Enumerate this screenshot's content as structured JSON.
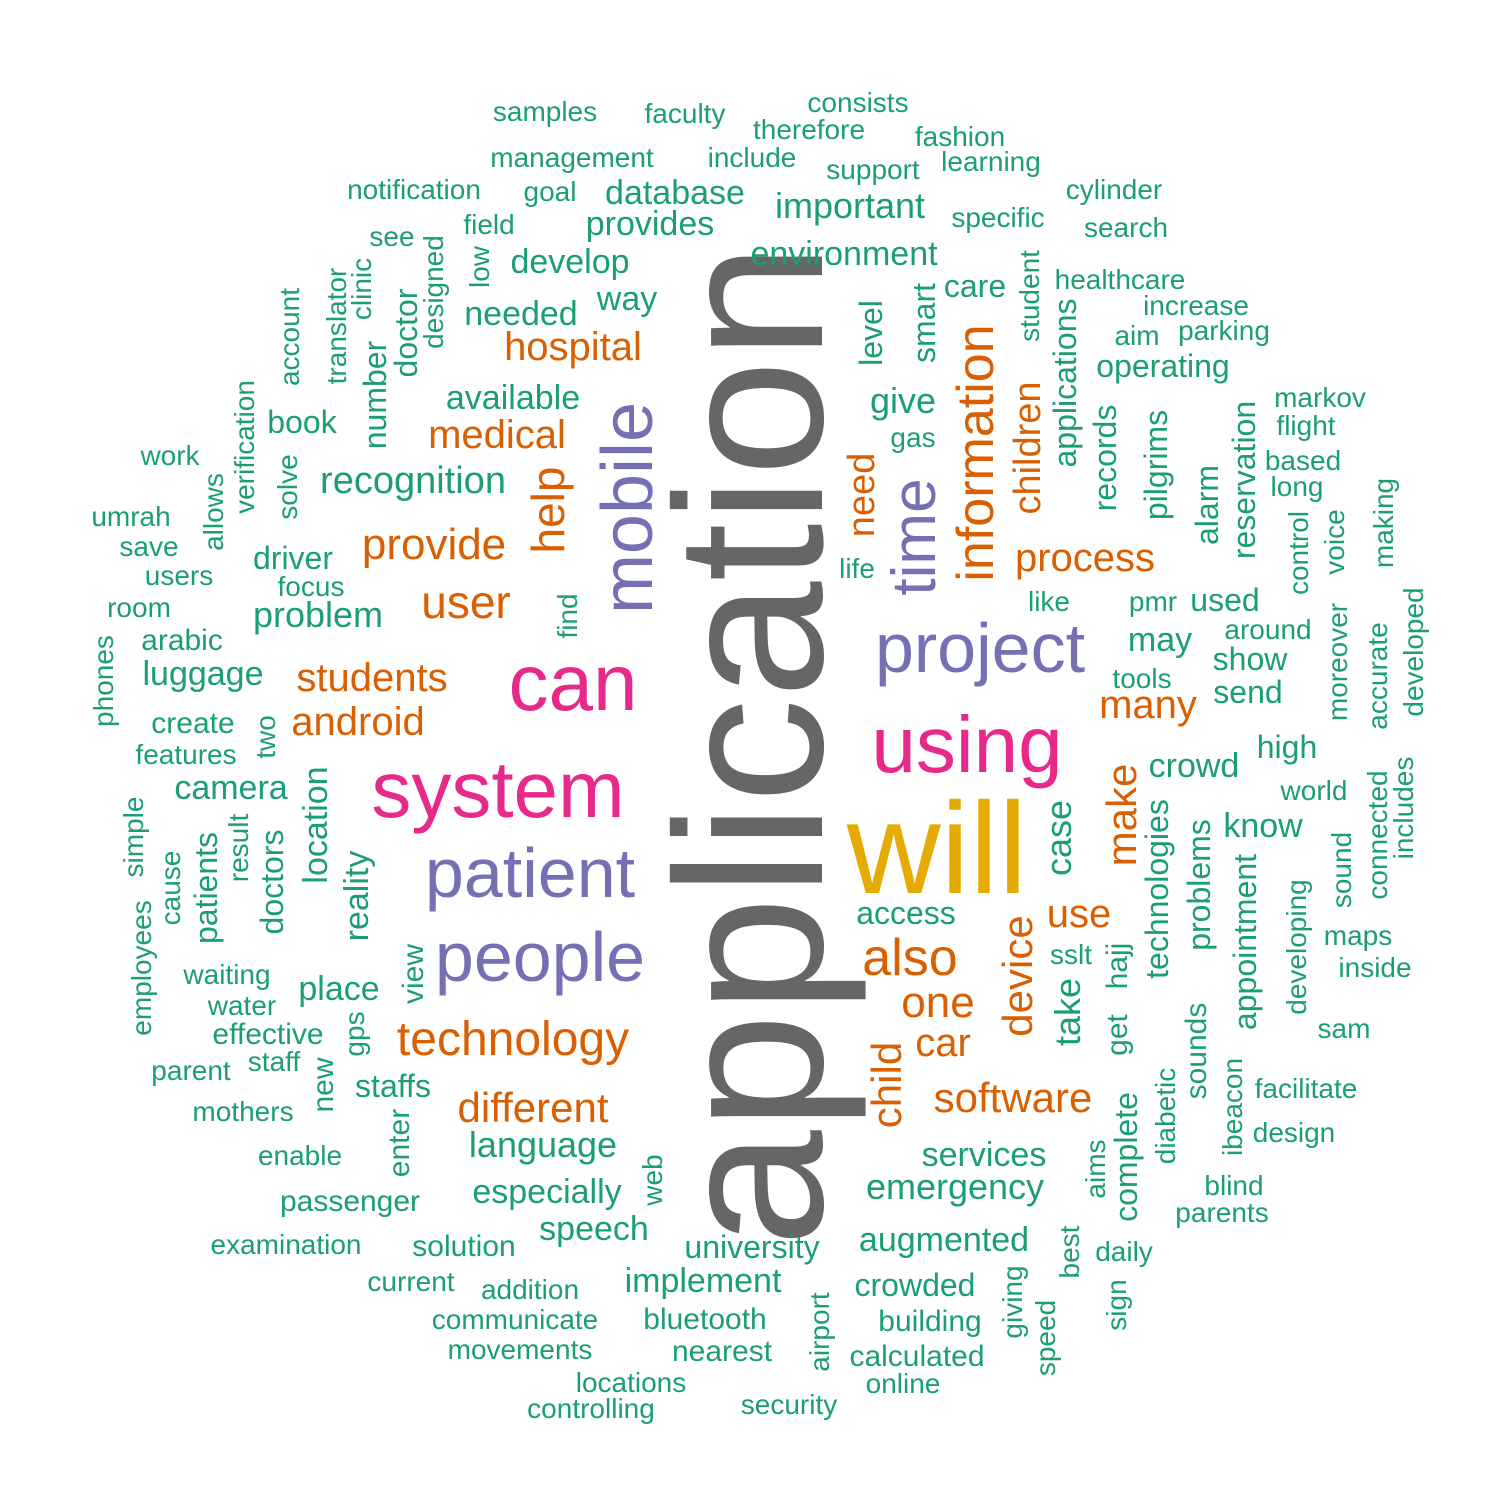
{
  "palette": {
    "gray": "#666666",
    "gold": "#E6AB02",
    "magenta": "#E7298A",
    "purple": "#7570B3",
    "orange": "#D95F02",
    "teal": "#1B9E77"
  },
  "words": [
    {
      "text": "application",
      "color": "gray",
      "rank": 1
    },
    {
      "text": "will",
      "color": "gold",
      "rank": 2
    },
    {
      "text": "system",
      "color": "magenta",
      "rank": 3
    },
    {
      "text": "can",
      "color": "magenta",
      "rank": 3
    },
    {
      "text": "using",
      "color": "magenta",
      "rank": 3
    },
    {
      "text": "patient",
      "color": "purple",
      "rank": 4
    },
    {
      "text": "project",
      "color": "purple",
      "rank": 4
    },
    {
      "text": "people",
      "color": "purple",
      "rank": 4
    },
    {
      "text": "mobile",
      "color": "purple",
      "rank": 4
    },
    {
      "text": "time",
      "color": "purple",
      "rank": 4
    },
    {
      "text": "also",
      "color": "orange",
      "rank": 5
    },
    {
      "text": "information",
      "color": "orange",
      "rank": 5
    },
    {
      "text": "technology",
      "color": "orange",
      "rank": 5
    },
    {
      "text": "help",
      "color": "orange",
      "rank": 5
    },
    {
      "text": "user",
      "color": "orange",
      "rank": 5
    },
    {
      "text": "provide",
      "color": "orange",
      "rank": 5
    },
    {
      "text": "students",
      "color": "orange",
      "rank": 5
    },
    {
      "text": "android",
      "color": "orange",
      "rank": 5
    },
    {
      "text": "different",
      "color": "orange",
      "rank": 5
    },
    {
      "text": "hospital",
      "color": "orange",
      "rank": 5
    },
    {
      "text": "medical",
      "color": "orange",
      "rank": 5
    },
    {
      "text": "process",
      "color": "orange",
      "rank": 5
    },
    {
      "text": "one",
      "color": "orange",
      "rank": 5
    },
    {
      "text": "software",
      "color": "orange",
      "rank": 5
    },
    {
      "text": "make",
      "color": "orange",
      "rank": 5
    },
    {
      "text": "device",
      "color": "orange",
      "rank": 5
    },
    {
      "text": "child",
      "color": "orange",
      "rank": 5
    },
    {
      "text": "use",
      "color": "orange",
      "rank": 5
    },
    {
      "text": "need",
      "color": "orange",
      "rank": 5
    },
    {
      "text": "children",
      "color": "orange",
      "rank": 5
    },
    {
      "text": "many",
      "color": "orange",
      "rank": 5
    },
    {
      "text": "car",
      "color": "orange",
      "rank": 5
    },
    {
      "text": "samples",
      "color": "teal",
      "rank": 6
    },
    {
      "text": "faculty",
      "color": "teal",
      "rank": 6
    },
    {
      "text": "consists",
      "color": "teal",
      "rank": 6
    },
    {
      "text": "therefore",
      "color": "teal",
      "rank": 6
    },
    {
      "text": "fashion",
      "color": "teal",
      "rank": 6
    },
    {
      "text": "management",
      "color": "teal",
      "rank": 6
    },
    {
      "text": "include",
      "color": "teal",
      "rank": 6
    },
    {
      "text": "learning",
      "color": "teal",
      "rank": 6
    },
    {
      "text": "support",
      "color": "teal",
      "rank": 6
    },
    {
      "text": "notification",
      "color": "teal",
      "rank": 6
    },
    {
      "text": "goal",
      "color": "teal",
      "rank": 6
    },
    {
      "text": "database",
      "color": "teal",
      "rank": 6
    },
    {
      "text": "cylinder",
      "color": "teal",
      "rank": 6
    },
    {
      "text": "important",
      "color": "teal",
      "rank": 6
    },
    {
      "text": "specific",
      "color": "teal",
      "rank": 6
    },
    {
      "text": "field",
      "color": "teal",
      "rank": 6
    },
    {
      "text": "provides",
      "color": "teal",
      "rank": 6
    },
    {
      "text": "search",
      "color": "teal",
      "rank": 6
    },
    {
      "text": "see",
      "color": "teal",
      "rank": 6
    },
    {
      "text": "environment",
      "color": "teal",
      "rank": 6
    },
    {
      "text": "develop",
      "color": "teal",
      "rank": 6
    },
    {
      "text": "healthcare",
      "color": "teal",
      "rank": 6
    },
    {
      "text": "care",
      "color": "teal",
      "rank": 6
    },
    {
      "text": "increase",
      "color": "teal",
      "rank": 6
    },
    {
      "text": "way",
      "color": "teal",
      "rank": 6
    },
    {
      "text": "parking",
      "color": "teal",
      "rank": 6
    },
    {
      "text": "needed",
      "color": "teal",
      "rank": 6
    },
    {
      "text": "aim",
      "color": "teal",
      "rank": 6
    },
    {
      "text": "operating",
      "color": "teal",
      "rank": 6
    },
    {
      "text": "available",
      "color": "teal",
      "rank": 6
    },
    {
      "text": "give",
      "color": "teal",
      "rank": 6
    },
    {
      "text": "markov",
      "color": "teal",
      "rank": 6
    },
    {
      "text": "book",
      "color": "teal",
      "rank": 6
    },
    {
      "text": "flight",
      "color": "teal",
      "rank": 6
    },
    {
      "text": "gas",
      "color": "teal",
      "rank": 6
    },
    {
      "text": "work",
      "color": "teal",
      "rank": 6
    },
    {
      "text": "based",
      "color": "teal",
      "rank": 6
    },
    {
      "text": "recognition",
      "color": "teal",
      "rank": 6
    },
    {
      "text": "long",
      "color": "teal",
      "rank": 6
    },
    {
      "text": "umrah",
      "color": "teal",
      "rank": 6
    },
    {
      "text": "save",
      "color": "teal",
      "rank": 6
    },
    {
      "text": "driver",
      "color": "teal",
      "rank": 6
    },
    {
      "text": "life",
      "color": "teal",
      "rank": 6
    },
    {
      "text": "users",
      "color": "teal",
      "rank": 6
    },
    {
      "text": "focus",
      "color": "teal",
      "rank": 6
    },
    {
      "text": "room",
      "color": "teal",
      "rank": 6
    },
    {
      "text": "problem",
      "color": "teal",
      "rank": 6
    },
    {
      "text": "like",
      "color": "teal",
      "rank": 6
    },
    {
      "text": "pmr",
      "color": "teal",
      "rank": 6
    },
    {
      "text": "used",
      "color": "teal",
      "rank": 6
    },
    {
      "text": "around",
      "color": "teal",
      "rank": 6
    },
    {
      "text": "arabic",
      "color": "teal",
      "rank": 6
    },
    {
      "text": "may",
      "color": "teal",
      "rank": 6
    },
    {
      "text": "show",
      "color": "teal",
      "rank": 6
    },
    {
      "text": "luggage",
      "color": "teal",
      "rank": 6
    },
    {
      "text": "tools",
      "color": "teal",
      "rank": 6
    },
    {
      "text": "send",
      "color": "teal",
      "rank": 6
    },
    {
      "text": "create",
      "color": "teal",
      "rank": 6
    },
    {
      "text": "features",
      "color": "teal",
      "rank": 6
    },
    {
      "text": "high",
      "color": "teal",
      "rank": 6
    },
    {
      "text": "crowd",
      "color": "teal",
      "rank": 6
    },
    {
      "text": "camera",
      "color": "teal",
      "rank": 6
    },
    {
      "text": "world",
      "color": "teal",
      "rank": 6
    },
    {
      "text": "know",
      "color": "teal",
      "rank": 6
    },
    {
      "text": "access",
      "color": "teal",
      "rank": 6
    },
    {
      "text": "maps",
      "color": "teal",
      "rank": 6
    },
    {
      "text": "sslt",
      "color": "teal",
      "rank": 6
    },
    {
      "text": "waiting",
      "color": "teal",
      "rank": 6
    },
    {
      "text": "inside",
      "color": "teal",
      "rank": 6
    },
    {
      "text": "place",
      "color": "teal",
      "rank": 6
    },
    {
      "text": "water",
      "color": "teal",
      "rank": 6
    },
    {
      "text": "effective",
      "color": "teal",
      "rank": 6
    },
    {
      "text": "sam",
      "color": "teal",
      "rank": 6
    },
    {
      "text": "staff",
      "color": "teal",
      "rank": 6
    },
    {
      "text": "parent",
      "color": "teal",
      "rank": 6
    },
    {
      "text": "staffs",
      "color": "teal",
      "rank": 6
    },
    {
      "text": "facilitate",
      "color": "teal",
      "rank": 6
    },
    {
      "text": "mothers",
      "color": "teal",
      "rank": 6
    },
    {
      "text": "language",
      "color": "teal",
      "rank": 6
    },
    {
      "text": "design",
      "color": "teal",
      "rank": 6
    },
    {
      "text": "services",
      "color": "teal",
      "rank": 6
    },
    {
      "text": "enable",
      "color": "teal",
      "rank": 6
    },
    {
      "text": "emergency",
      "color": "teal",
      "rank": 6
    },
    {
      "text": "blind",
      "color": "teal",
      "rank": 6
    },
    {
      "text": "especially",
      "color": "teal",
      "rank": 6
    },
    {
      "text": "passenger",
      "color": "teal",
      "rank": 6
    },
    {
      "text": "parents",
      "color": "teal",
      "rank": 6
    },
    {
      "text": "speech",
      "color": "teal",
      "rank": 6
    },
    {
      "text": "augmented",
      "color": "teal",
      "rank": 6
    },
    {
      "text": "examination",
      "color": "teal",
      "rank": 6
    },
    {
      "text": "solution",
      "color": "teal",
      "rank": 6
    },
    {
      "text": "university",
      "color": "teal",
      "rank": 6
    },
    {
      "text": "daily",
      "color": "teal",
      "rank": 6
    },
    {
      "text": "current",
      "color": "teal",
      "rank": 6
    },
    {
      "text": "implement",
      "color": "teal",
      "rank": 6
    },
    {
      "text": "crowded",
      "color": "teal",
      "rank": 6
    },
    {
      "text": "addition",
      "color": "teal",
      "rank": 6
    },
    {
      "text": "communicate",
      "color": "teal",
      "rank": 6
    },
    {
      "text": "bluetooth",
      "color": "teal",
      "rank": 6
    },
    {
      "text": "building",
      "color": "teal",
      "rank": 6
    },
    {
      "text": "movements",
      "color": "teal",
      "rank": 6
    },
    {
      "text": "nearest",
      "color": "teal",
      "rank": 6
    },
    {
      "text": "calculated",
      "color": "teal",
      "rank": 6
    },
    {
      "text": "locations",
      "color": "teal",
      "rank": 6
    },
    {
      "text": "online",
      "color": "teal",
      "rank": 6
    },
    {
      "text": "controlling",
      "color": "teal",
      "rank": 6
    },
    {
      "text": "security",
      "color": "teal",
      "rank": 6
    },
    {
      "text": "designed",
      "color": "teal",
      "rank": 6
    },
    {
      "text": "low",
      "color": "teal",
      "rank": 6
    },
    {
      "text": "clinic",
      "color": "teal",
      "rank": 6
    },
    {
      "text": "doctor",
      "color": "teal",
      "rank": 6
    },
    {
      "text": "translator",
      "color": "teal",
      "rank": 6
    },
    {
      "text": "account",
      "color": "teal",
      "rank": 6
    },
    {
      "text": "number",
      "color": "teal",
      "rank": 6
    },
    {
      "text": "verification",
      "color": "teal",
      "rank": 6
    },
    {
      "text": "solve",
      "color": "teal",
      "rank": 6
    },
    {
      "text": "allows",
      "color": "teal",
      "rank": 6
    },
    {
      "text": "find",
      "color": "teal",
      "rank": 6
    },
    {
      "text": "phones",
      "color": "teal",
      "rank": 6
    },
    {
      "text": "two",
      "color": "teal",
      "rank": 6
    },
    {
      "text": "simple",
      "color": "teal",
      "rank": 6
    },
    {
      "text": "employees",
      "color": "teal",
      "rank": 6
    },
    {
      "text": "cause",
      "color": "teal",
      "rank": 6
    },
    {
      "text": "patients",
      "color": "teal",
      "rank": 6
    },
    {
      "text": "result",
      "color": "teal",
      "rank": 6
    },
    {
      "text": "doctors",
      "color": "teal",
      "rank": 6
    },
    {
      "text": "location",
      "color": "teal",
      "rank": 6
    },
    {
      "text": "reality",
      "color": "teal",
      "rank": 6
    },
    {
      "text": "view",
      "color": "teal",
      "rank": 6
    },
    {
      "text": "gps",
      "color": "teal",
      "rank": 6
    },
    {
      "text": "new",
      "color": "teal",
      "rank": 6
    },
    {
      "text": "enter",
      "color": "teal",
      "rank": 6
    },
    {
      "text": "web",
      "color": "teal",
      "rank": 6
    },
    {
      "text": "airport",
      "color": "teal",
      "rank": 6
    },
    {
      "text": "level",
      "color": "teal",
      "rank": 6
    },
    {
      "text": "smart",
      "color": "teal",
      "rank": 6
    },
    {
      "text": "student",
      "color": "teal",
      "rank": 6
    },
    {
      "text": "applications",
      "color": "teal",
      "rank": 6
    },
    {
      "text": "records",
      "color": "teal",
      "rank": 6
    },
    {
      "text": "pilgrims",
      "color": "teal",
      "rank": 6
    },
    {
      "text": "alarm",
      "color": "teal",
      "rank": 6
    },
    {
      "text": "reservation",
      "color": "teal",
      "rank": 6
    },
    {
      "text": "control",
      "color": "teal",
      "rank": 6
    },
    {
      "text": "voice",
      "color": "teal",
      "rank": 6
    },
    {
      "text": "making",
      "color": "teal",
      "rank": 6
    },
    {
      "text": "moreover",
      "color": "teal",
      "rank": 6
    },
    {
      "text": "accurate",
      "color": "teal",
      "rank": 6
    },
    {
      "text": "developed",
      "color": "teal",
      "rank": 6
    },
    {
      "text": "case",
      "color": "teal",
      "rank": 6
    },
    {
      "text": "technologies",
      "color": "teal",
      "rank": 6
    },
    {
      "text": "problems",
      "color": "teal",
      "rank": 6
    },
    {
      "text": "appointment",
      "color": "teal",
      "rank": 6
    },
    {
      "text": "developing",
      "color": "teal",
      "rank": 6
    },
    {
      "text": "sound",
      "color": "teal",
      "rank": 6
    },
    {
      "text": "connected",
      "color": "teal",
      "rank": 6
    },
    {
      "text": "includes",
      "color": "teal",
      "rank": 6
    },
    {
      "text": "take",
      "color": "teal",
      "rank": 6
    },
    {
      "text": "hajj",
      "color": "teal",
      "rank": 6
    },
    {
      "text": "get",
      "color": "teal",
      "rank": 6
    },
    {
      "text": "diabetic",
      "color": "teal",
      "rank": 6
    },
    {
      "text": "sounds",
      "color": "teal",
      "rank": 6
    },
    {
      "text": "ibeacon",
      "color": "teal",
      "rank": 6
    },
    {
      "text": "aims",
      "color": "teal",
      "rank": 6
    },
    {
      "text": "complete",
      "color": "teal",
      "rank": 6
    },
    {
      "text": "best",
      "color": "teal",
      "rank": 6
    },
    {
      "text": "sign",
      "color": "teal",
      "rank": 6
    },
    {
      "text": "giving",
      "color": "teal",
      "rank": 6
    },
    {
      "text": "speed",
      "color": "teal",
      "rank": 6
    }
  ]
}
